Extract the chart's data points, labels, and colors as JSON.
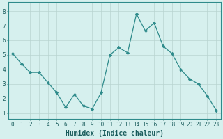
{
  "x": [
    0,
    1,
    2,
    3,
    4,
    5,
    6,
    7,
    8,
    9,
    10,
    11,
    12,
    13,
    14,
    15,
    16,
    17,
    18,
    19,
    20,
    21,
    22,
    23
  ],
  "y": [
    5.1,
    4.4,
    3.8,
    3.8,
    3.1,
    2.4,
    1.4,
    2.3,
    1.5,
    1.3,
    2.4,
    5.0,
    5.5,
    5.15,
    7.8,
    6.65,
    7.2,
    5.6,
    5.1,
    4.0,
    3.35,
    3.0,
    2.2,
    1.2
  ],
  "line_color": "#2e8b8b",
  "marker": "D",
  "marker_size": 2.2,
  "bg_color": "#d6f0ee",
  "grid_color": "#b8d4d0",
  "xlabel": "Humidex (Indice chaleur)",
  "ylim": [
    0.6,
    8.6
  ],
  "xlim": [
    -0.5,
    23.5
  ],
  "yticks": [
    1,
    2,
    3,
    4,
    5,
    6,
    7,
    8
  ],
  "xticks": [
    0,
    1,
    2,
    3,
    4,
    5,
    6,
    7,
    8,
    9,
    10,
    11,
    12,
    13,
    14,
    15,
    16,
    17,
    18,
    19,
    20,
    21,
    22,
    23
  ],
  "tick_label_fontsize": 5.5,
  "xlabel_fontsize": 7.0,
  "linewidth": 0.9
}
